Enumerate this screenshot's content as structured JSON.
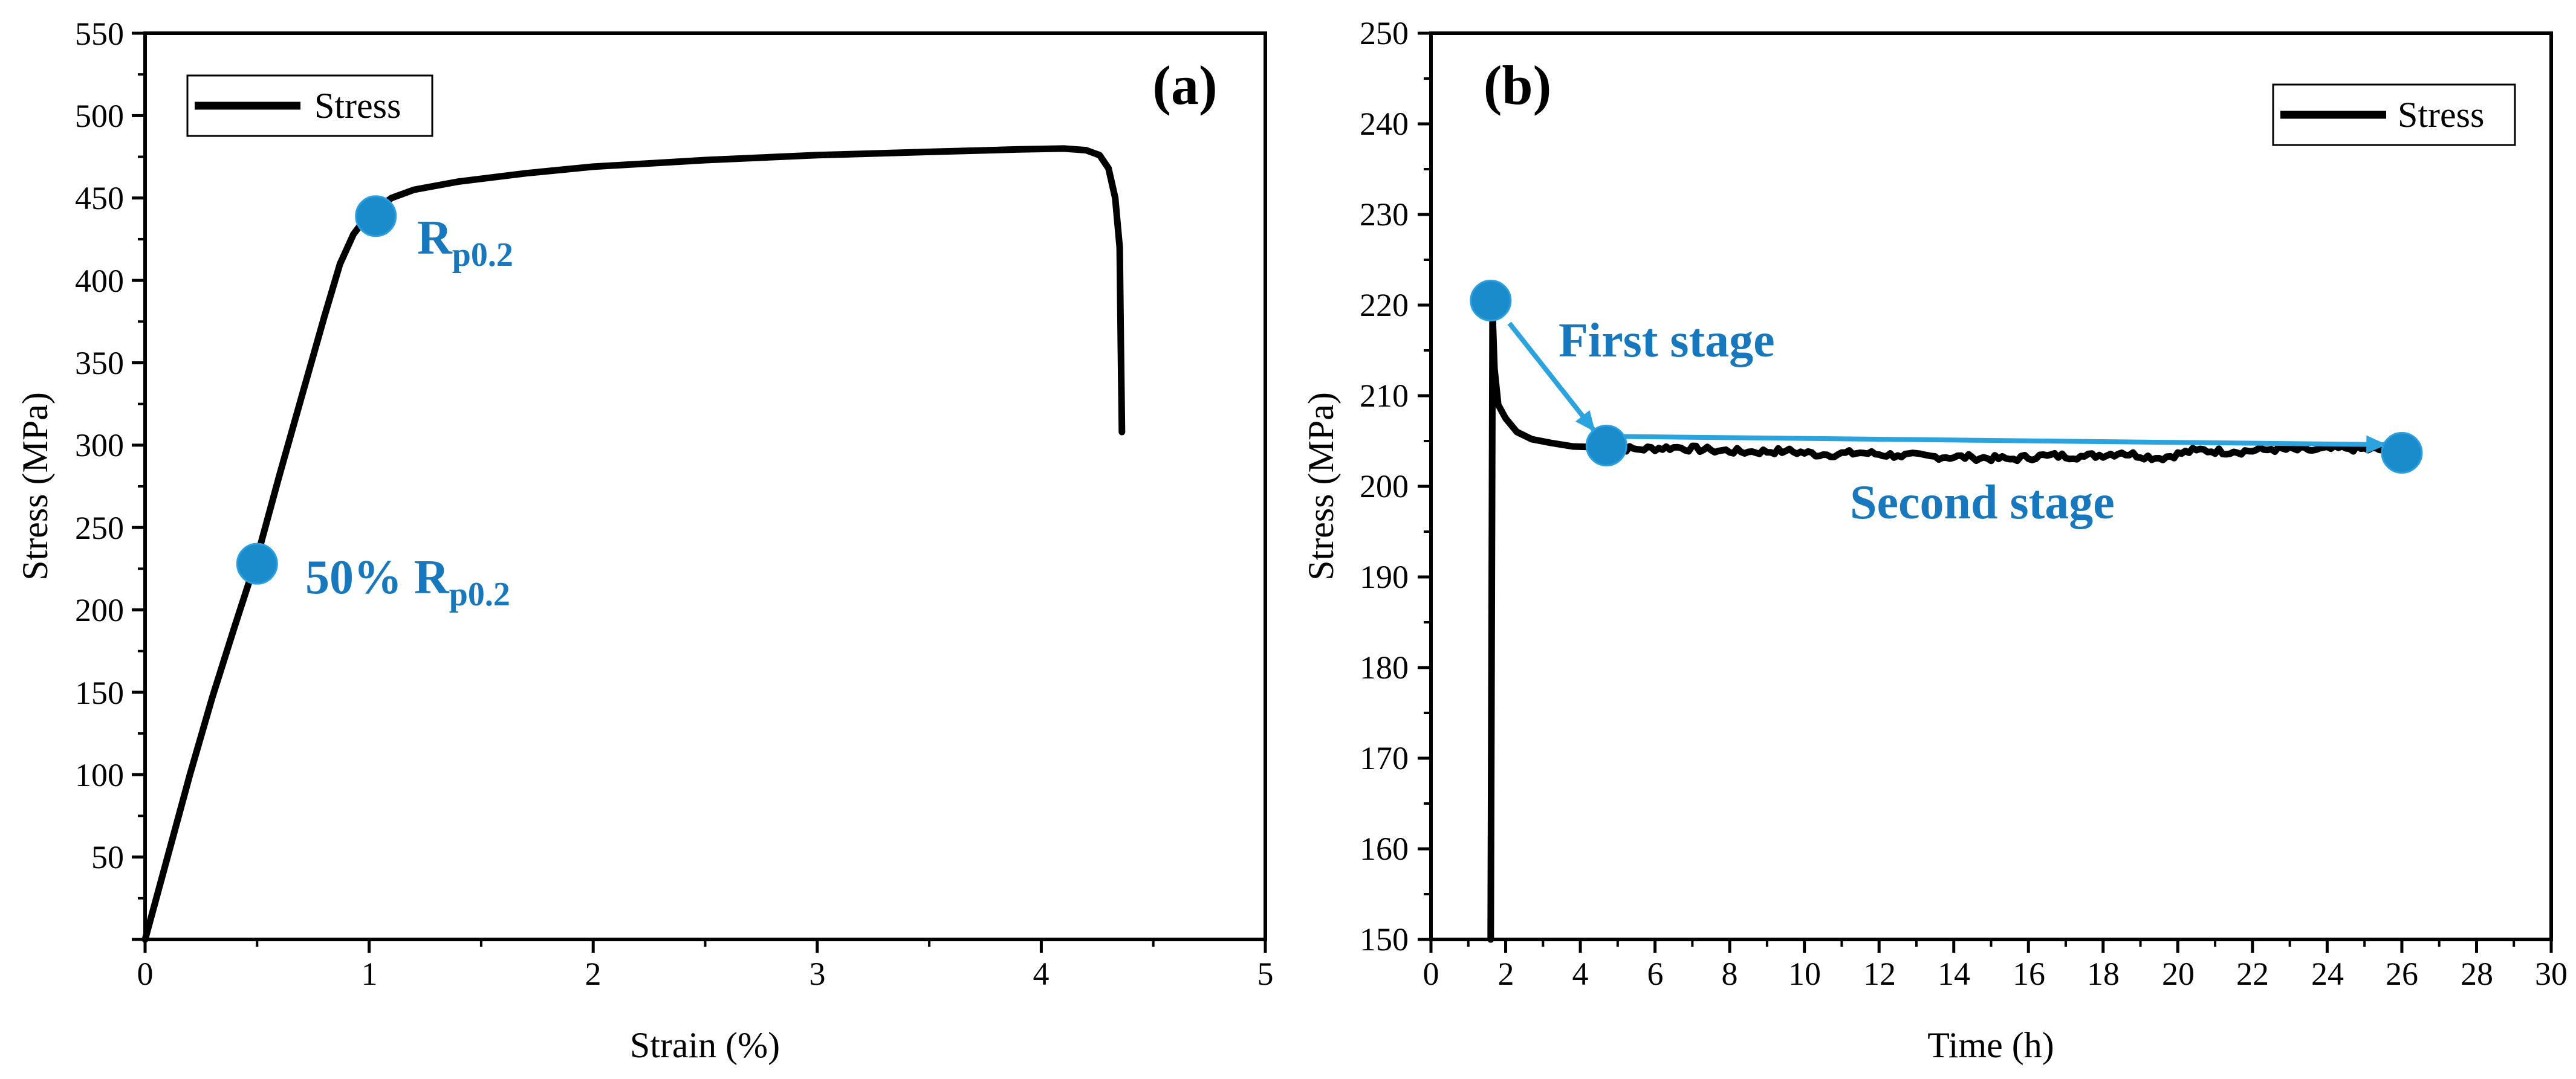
{
  "colors": {
    "line": "#000000",
    "marker": "#1a8ccc",
    "annotation_text": "#1878be",
    "arrow": "#2aa3df"
  },
  "chart_data": [
    {
      "panel_label": "(a)",
      "type": "line",
      "xlabel": "Strain (%)",
      "ylabel": "Stress (MPa)",
      "xlim": [
        0,
        5
      ],
      "ylim": [
        0,
        550
      ],
      "xticks": [
        0,
        1,
        2,
        3,
        4,
        5
      ],
      "yticks": [
        50,
        100,
        150,
        200,
        250,
        300,
        350,
        400,
        450,
        500,
        550
      ],
      "grid": false,
      "legend": {
        "entries": [
          "Stress"
        ],
        "position": "top-left"
      },
      "series": [
        {
          "name": "Stress",
          "x": [
            0,
            0.1,
            0.2,
            0.3,
            0.4,
            0.5,
            0.6,
            0.7,
            0.8,
            0.87,
            0.93,
            0.98,
            1.03,
            1.1,
            1.2,
            1.4,
            1.7,
            2.0,
            2.5,
            3.0,
            3.5,
            3.9,
            4.1,
            4.2,
            4.26,
            4.3,
            4.33,
            4.35,
            4.355,
            4.36
          ],
          "y": [
            0,
            50,
            100,
            147,
            190,
            232,
            282,
            330,
            378,
            410,
            428,
            437,
            443,
            450,
            455,
            460,
            465,
            469,
            473,
            476,
            478,
            479.5,
            480,
            479,
            476,
            468,
            450,
            420,
            360,
            308
          ]
        }
      ],
      "markers": [
        {
          "x": 0.5,
          "y": 228,
          "label_main": "50% R",
          "label_sub": "p0.2"
        },
        {
          "x": 1.03,
          "y": 439,
          "label_main": "R",
          "label_sub": "p0.2"
        }
      ]
    },
    {
      "panel_label": "(b)",
      "type": "line",
      "xlabel": "Time (h)",
      "ylabel": "Stress (MPa)",
      "xlim": [
        0,
        30
      ],
      "ylim": [
        150,
        250
      ],
      "xticks": [
        0,
        2,
        4,
        6,
        8,
        10,
        12,
        14,
        16,
        18,
        20,
        22,
        24,
        26,
        28,
        30
      ],
      "yticks": [
        150,
        160,
        170,
        180,
        190,
        200,
        210,
        220,
        230,
        240,
        250
      ],
      "grid": false,
      "legend": {
        "entries": [
          "Stress"
        ],
        "position": "top-right"
      },
      "series": [
        {
          "name": "Stress",
          "x": [
            1.6,
            1.65,
            1.7,
            1.8,
            2.0,
            2.3,
            2.7,
            3.2,
            3.8,
            4.6,
            5.5,
            6.5,
            7.5,
            8.5,
            9.5,
            10.5,
            11.5,
            12.5,
            13.5,
            14.5,
            15.5,
            16.5,
            17.5,
            18.5,
            19.5,
            20.5,
            21.5,
            22.5,
            23.5,
            24.5,
            25.5,
            26.0
          ],
          "y": [
            150,
            219,
            213,
            209,
            207.5,
            206,
            205.2,
            204.8,
            204.4,
            204.3,
            204.1,
            204.3,
            204.0,
            203.8,
            203.9,
            203.5,
            203.7,
            203.4,
            203.3,
            203.2,
            203.0,
            203.4,
            203.3,
            203.7,
            203.1,
            204.0,
            203.8,
            204.1,
            204.0,
            204.2,
            204.0,
            204.0
          ]
        }
      ],
      "markers": [
        {
          "x": 1.6,
          "y": 220.5
        },
        {
          "x": 4.7,
          "y": 204.5
        },
        {
          "x": 26.0,
          "y": 203.7
        }
      ],
      "arrows": [
        {
          "from": [
            2.1,
            218
          ],
          "to": [
            4.4,
            206
          ]
        },
        {
          "from": [
            5.1,
            205.5
          ],
          "to": [
            25.6,
            204.6
          ]
        }
      ],
      "annotations": [
        "First stage",
        "Second stage"
      ]
    }
  ]
}
